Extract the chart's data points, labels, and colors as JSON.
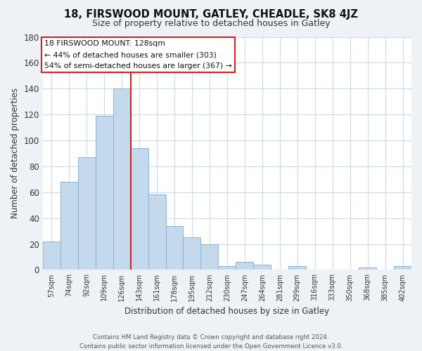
{
  "title1": "18, FIRSWOOD MOUNT, GATLEY, CHEADLE, SK8 4JZ",
  "title2": "Size of property relative to detached houses in Gatley",
  "xlabel": "Distribution of detached houses by size in Gatley",
  "ylabel": "Number of detached properties",
  "bar_color": "#c5d9ed",
  "bar_edge_color": "#8ab4d4",
  "categories": [
    "57sqm",
    "74sqm",
    "92sqm",
    "109sqm",
    "126sqm",
    "143sqm",
    "161sqm",
    "178sqm",
    "195sqm",
    "212sqm",
    "230sqm",
    "247sqm",
    "264sqm",
    "281sqm",
    "299sqm",
    "316sqm",
    "333sqm",
    "350sqm",
    "368sqm",
    "385sqm",
    "402sqm"
  ],
  "values": [
    22,
    68,
    87,
    119,
    140,
    94,
    58,
    34,
    25,
    20,
    3,
    6,
    4,
    0,
    3,
    0,
    0,
    0,
    2,
    0,
    3
  ],
  "ylim": [
    0,
    180
  ],
  "yticks": [
    0,
    20,
    40,
    60,
    80,
    100,
    120,
    140,
    160,
    180
  ],
  "annotation_line1": "18 FIRSWOOD MOUNT: 128sqm",
  "annotation_line2": "← 44% of detached houses are smaller (303)",
  "annotation_line3": "54% of semi-detached houses are larger (367) →",
  "footer_line1": "Contains HM Land Registry data © Crown copyright and database right 2024.",
  "footer_line2": "Contains public sector information licensed under the Open Government Licence v3.0.",
  "background_color": "#eef2f7",
  "plot_bg_color": "#ffffff",
  "grid_color": "#ccd8e8"
}
